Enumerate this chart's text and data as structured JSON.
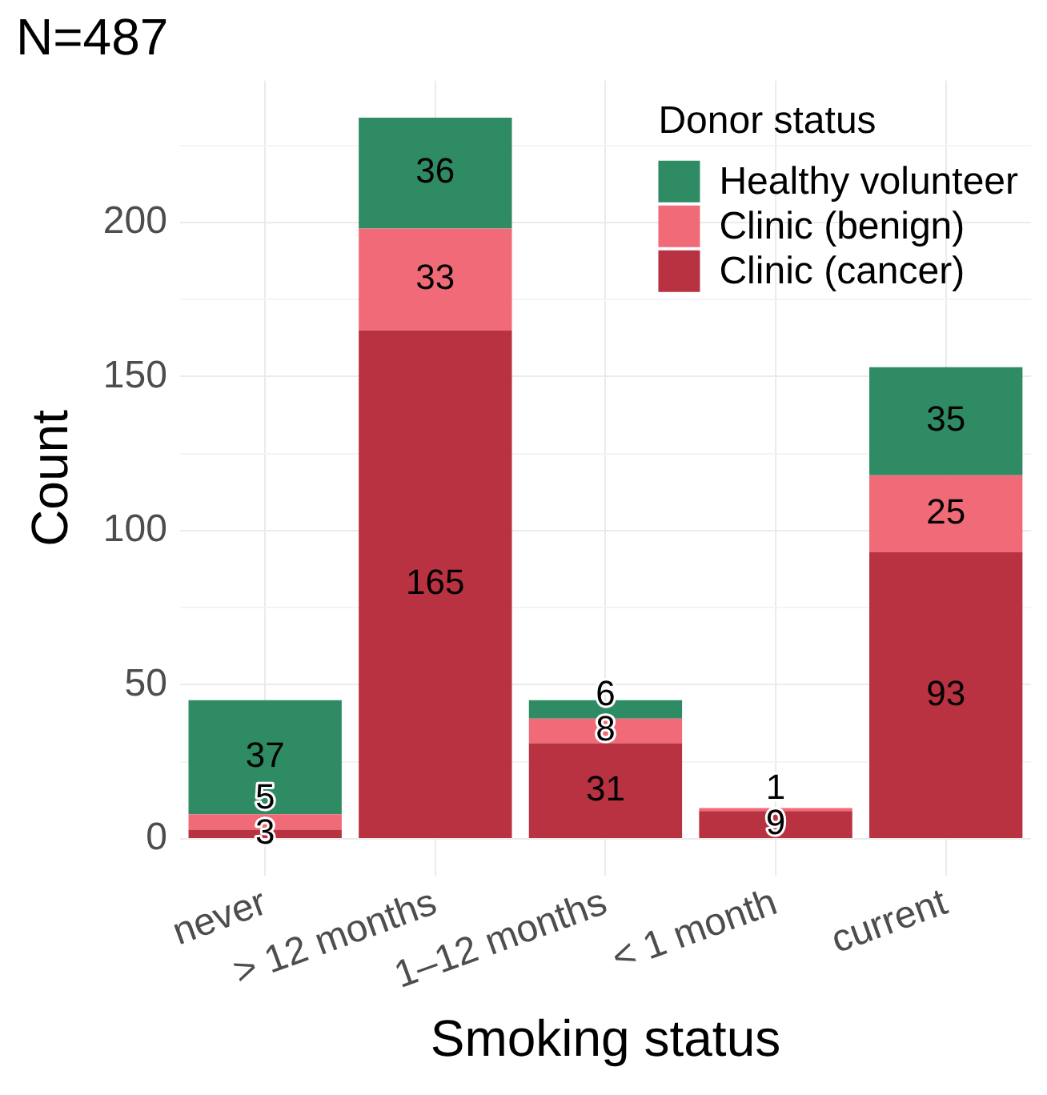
{
  "chart_data": {
    "type": "bar",
    "title": "N=487",
    "xlabel": "Smoking status",
    "ylabel": "Count",
    "legend_title": "Donor status",
    "categories": [
      "never",
      "> 12 months",
      "1–12 months",
      "< 1 month",
      "current"
    ],
    "stacked": true,
    "data_labels": true,
    "grid": true,
    "legend": "top right",
    "ylim": [
      -12,
      246
    ],
    "yticks": [
      0,
      {
        "value": 25,
        "label": null
      },
      50,
      {
        "value": 75,
        "label": null
      },
      100,
      {
        "value": 125,
        "label": null
      },
      150,
      {
        "value": 175,
        "label": null
      },
      200,
      {
        "value": 225,
        "label": null
      }
    ],
    "series": [
      {
        "name": "Clinic (cancer)",
        "color": "#b83242",
        "values": [
          3,
          165,
          31,
          9,
          93
        ]
      },
      {
        "name": "Clinic (benign)",
        "color": "#f06a78",
        "values": [
          5,
          33,
          8,
          1,
          25
        ]
      },
      {
        "name": "Healthy volunteer",
        "color": "#2e8b64",
        "values": [
          37,
          36,
          6,
          null,
          35
        ]
      }
    ]
  }
}
